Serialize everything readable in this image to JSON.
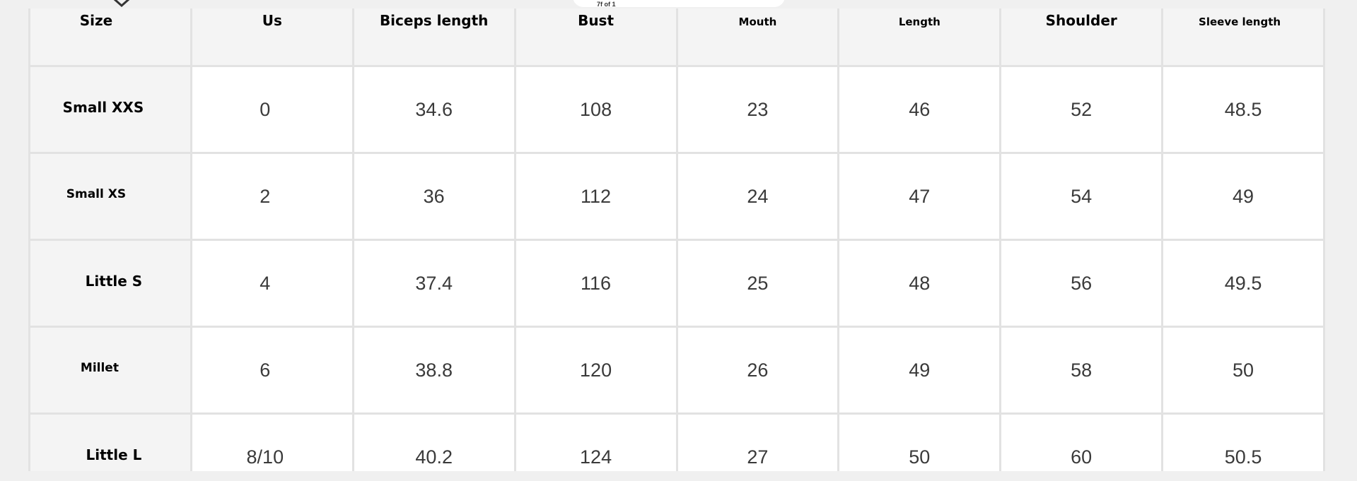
{
  "pager": {
    "label": "7f of 1"
  },
  "table": {
    "header": [
      "Size",
      "Us",
      "Biceps length",
      "Bust",
      "Mouth",
      "Length",
      "Shoulder",
      "Sleeve length"
    ],
    "rows": [
      [
        "Small XXS",
        "0",
        "34.6",
        "108",
        "23",
        "46",
        "52",
        "48.5"
      ],
      [
        "Small XS",
        "2",
        "36",
        "112",
        "24",
        "47",
        "54",
        "49"
      ],
      [
        "Little S",
        "4",
        "37.4",
        "116",
        "25",
        "48",
        "56",
        "49.5"
      ],
      [
        "Millet",
        "6",
        "38.8",
        "120",
        "26",
        "49",
        "58",
        "50"
      ],
      [
        "Little L",
        "8/10",
        "40.2",
        "124",
        "27",
        "50",
        "60",
        "50.5"
      ]
    ]
  }
}
